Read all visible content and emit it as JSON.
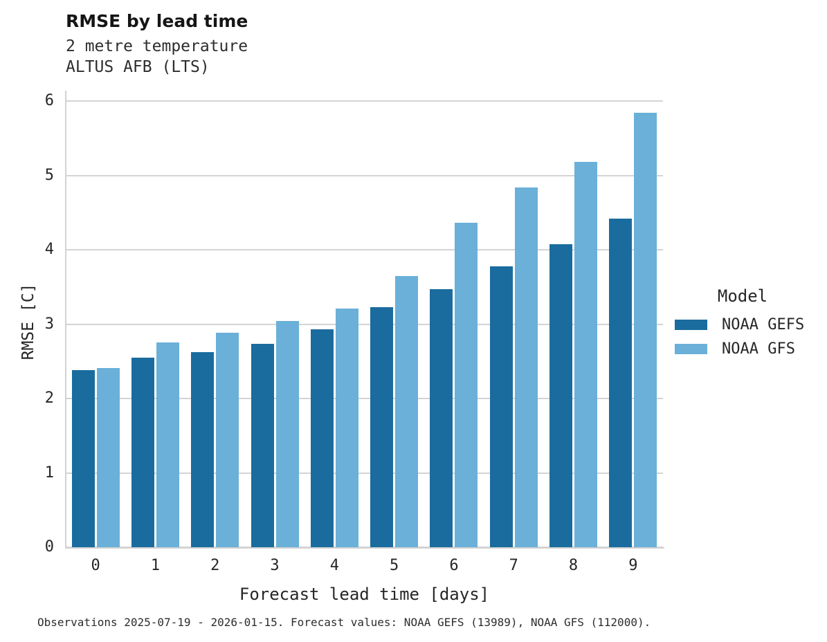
{
  "header": {
    "title": "RMSE by lead time",
    "subtitle_line1": "2 metre temperature",
    "subtitle_line2": "ALTUS AFB (LTS)"
  },
  "chart_data": {
    "type": "bar",
    "title": "RMSE by lead time",
    "subtitle": [
      "2 metre temperature",
      "ALTUS AFB (LTS)"
    ],
    "categories": [
      "0",
      "1",
      "2",
      "3",
      "4",
      "5",
      "6",
      "7",
      "8",
      "9"
    ],
    "series": [
      {
        "name": "NOAA GEFS",
        "color": "#1a6c9e",
        "values": [
          2.39,
          2.56,
          2.63,
          2.74,
          2.94,
          3.24,
          3.48,
          3.79,
          4.08,
          4.43
        ]
      },
      {
        "name": "NOAA GFS",
        "color": "#6ab0d9",
        "values": [
          2.42,
          2.76,
          2.89,
          3.05,
          3.22,
          3.66,
          4.37,
          4.85,
          5.19,
          5.85
        ]
      }
    ],
    "xlabel": "Forecast lead time [days]",
    "ylabel": "RMSE [C]",
    "ylim": [
      0,
      6
    ],
    "yticks": [
      0,
      1,
      2,
      3,
      4,
      5,
      6
    ],
    "grid": true,
    "legend_title": "Model",
    "legend_position": "right"
  },
  "legend": {
    "title": "Model",
    "items": [
      {
        "label": "NOAA GEFS"
      },
      {
        "label": "NOAA GFS"
      }
    ]
  },
  "footer": {
    "caption": "Observations 2025-07-19 - 2026-01-15. Forecast values: NOAA GEFS (13989), NOAA GFS (112000)."
  }
}
